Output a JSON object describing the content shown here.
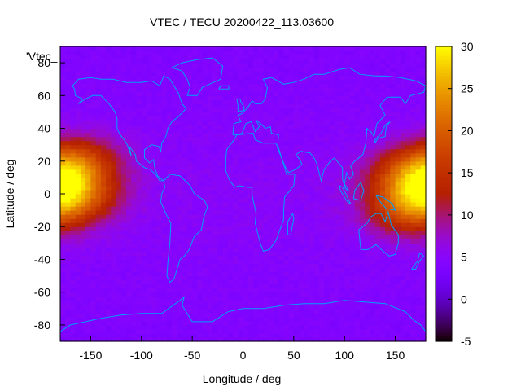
{
  "chart_data": {
    "type": "heatmap",
    "title": "VTEC / TECU 20200422_113.03600",
    "key_label": "'Vtec_",
    "xlabel": "Longitude / deg",
    "ylabel": "Latitude / deg",
    "xlim": [
      -180,
      180
    ],
    "ylim": [
      -90,
      90
    ],
    "xticks": [
      -150,
      -100,
      -50,
      0,
      50,
      100,
      150
    ],
    "yticks": [
      -80,
      -60,
      -40,
      -20,
      0,
      20,
      40,
      60,
      80
    ],
    "colorbar": {
      "range": [
        -5,
        30
      ],
      "ticks": [
        30,
        25,
        20,
        15,
        10,
        5,
        0,
        -5
      ],
      "palette": "gnuplot-pm3d"
    },
    "background_vtec": 5,
    "anomalies": [
      {
        "name": "equatorial-anomaly-west",
        "lon": -165,
        "lat": 10,
        "peak": 25
      },
      {
        "name": "equatorial-anomaly-east",
        "lon": 165,
        "lat": 0,
        "peak": 25
      }
    ],
    "overlay": "coastlines",
    "overlay_color": "#00a0ff"
  }
}
